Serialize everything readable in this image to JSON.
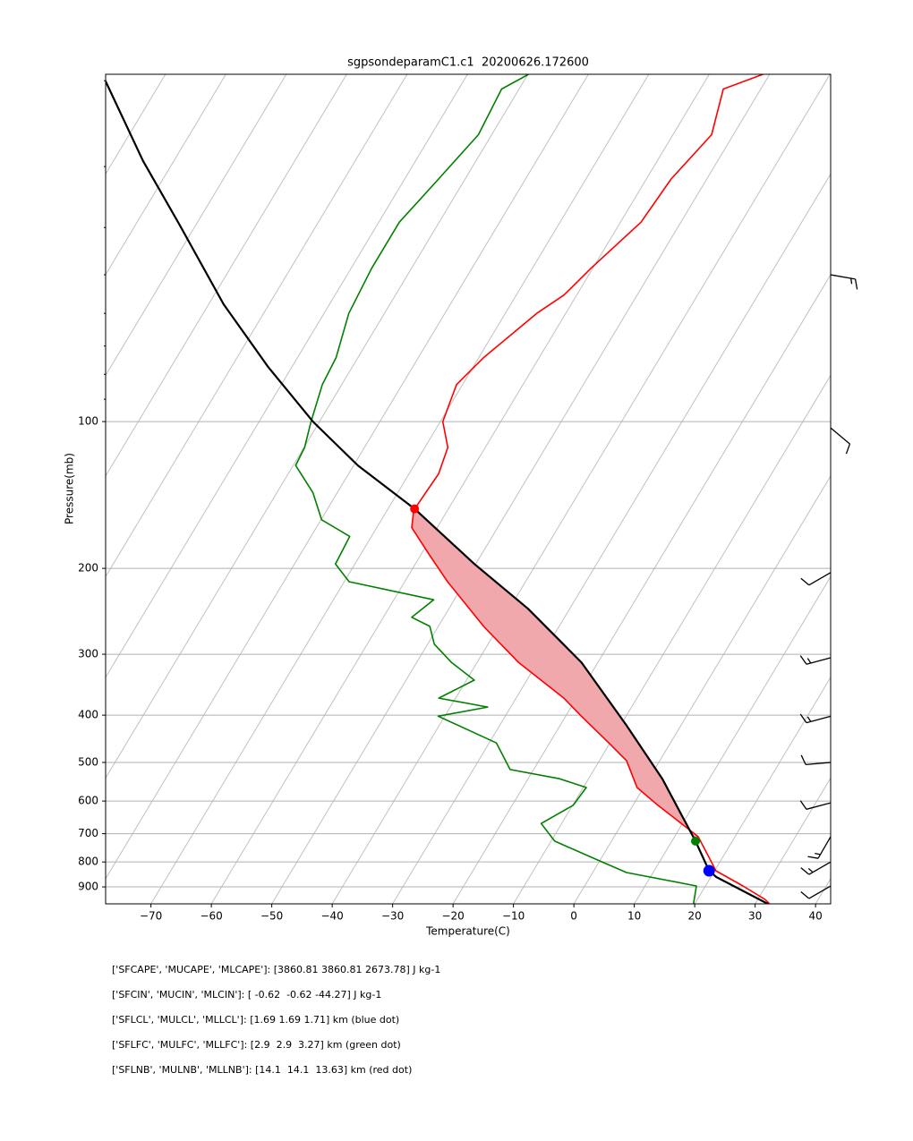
{
  "chart_data": {
    "type": "skewt",
    "title": "sgpsondeparamC1.c1  20200626.172600",
    "xlabel": "Temperature(C)",
    "ylabel": "Pressure(mb)",
    "xlim": [
      -77.5,
      42.5
    ],
    "ylim": [
      975,
      19.4
    ],
    "log_y": true,
    "grid": true,
    "xticks": [
      {
        "value": -70,
        "label": "−70"
      },
      {
        "value": -60,
        "label": "−60"
      },
      {
        "value": -50,
        "label": "−50"
      },
      {
        "value": -40,
        "label": "−40"
      },
      {
        "value": -30,
        "label": "−30"
      },
      {
        "value": -20,
        "label": "−20"
      },
      {
        "value": -10,
        "label": "−10"
      },
      0,
      10,
      20,
      30,
      40
    ],
    "yticks": [
      100,
      200,
      300,
      400,
      500,
      600,
      700,
      800,
      900
    ],
    "yminorticks": [
      20,
      30,
      40,
      50,
      60,
      70,
      80,
      90
    ],
    "isotherms": [
      -160,
      -150,
      -140,
      -130,
      -120,
      -110,
      -100,
      -90,
      -80,
      -70,
      -60,
      -50,
      -40,
      -30,
      -20,
      -10,
      0,
      10,
      20,
      30,
      40
    ],
    "isotherm_color": "#c0c0c0",
    "series": [
      {
        "color": "#ff0000",
        "pressure": [
          975,
          955,
          896,
          834,
          800,
          710,
          612,
          563,
          496,
          456,
          402,
          369,
          312,
          263,
          213,
          188,
          165,
          152,
          128,
          113,
          100,
          84,
          74,
          60,
          55,
          48.5,
          39,
          31.8,
          25.8,
          20.8,
          19.4
        ],
        "temperature": [
          32.4,
          31.2,
          26.2,
          20.2,
          18.6,
          13.9,
          4.1,
          -1.1,
          -5.5,
          -10.2,
          -17.4,
          -22.1,
          -33.1,
          -42.5,
          -52.9,
          -58.5,
          -64.2,
          -65.6,
          -65.1,
          -66.2,
          -69.6,
          -71,
          -69.2,
          -64.8,
          -62.1,
          -60.3,
          -56.6,
          -55.9,
          -53.6,
          -56.2,
          -51.1
        ]
      },
      {
        "color": "#008000",
        "pressure": [
          975,
          896,
          841,
          789,
          725,
          667,
          612,
          563,
          540,
          517,
          456,
          402,
          385,
          369,
          339,
          312,
          286,
          263,
          252,
          232,
          213,
          196,
          172,
          159,
          140,
          123,
          113,
          100,
          84,
          74,
          60,
          48.5,
          39,
          31.8,
          25.8,
          20.8,
          19.4
        ],
        "temperature": [
          19.8,
          18.5,
          5.6,
          -0.9,
          -9.4,
          -13.4,
          -9.9,
          -9.5,
          -14.8,
          -23.9,
          -28.8,
          -41.1,
          -33.8,
          -42.8,
          -38.7,
          -44.2,
          -48.9,
          -51.4,
          -55.3,
          -53.4,
          -69.2,
          -73.2,
          -73.6,
          -79.9,
          -84,
          -89.6,
          -89.9,
          -91.4,
          -93.2,
          -93.6,
          -95.9,
          -96.6,
          -96.6,
          -94.4,
          -92.2,
          -92.9,
          -89.9
        ]
      },
      {
        "color": "#000000",
        "pressure": [
          975,
          859,
          834,
          725,
          540,
          419,
          312,
          242,
          196,
          151,
          123,
          100,
          77.3,
          57.5,
          39.3,
          29.2,
          20.0
        ],
        "temperature": [
          32.1,
          20.9,
          19.1,
          13.9,
          2.2,
          -9.1,
          -22.7,
          -36.9,
          -50.2,
          -65.6,
          -79.3,
          -91.1,
          -103.9,
          -117.5,
          -132.9,
          -145.1,
          -159.3
        ]
      }
    ],
    "cape_fill_color": "#f0a8ac",
    "markers": [
      {
        "color": "#0000ff",
        "pressure": 834,
        "temperature": 19.1
      },
      {
        "color": "#008000",
        "pressure": 725,
        "temperature": 13.9
      },
      {
        "color": "#ff0000",
        "pressure": 151,
        "temperature": -65.6
      }
    ],
    "wind_barbs": {
      "pressure": [
        50,
        103,
        204,
        305,
        402,
        500,
        605,
        710,
        800,
        896
      ],
      "speed": [
        15,
        10,
        10,
        15,
        15,
        10,
        10,
        15,
        15,
        10
      ],
      "direction": [
        100,
        130,
        240,
        255,
        255,
        265,
        255,
        210,
        240,
        240
      ]
    },
    "stats_lines": [
      "['SFCAPE', 'MUCAPE', 'MLCAPE']: [3860.81 3860.81 2673.78] J kg-1",
      "['SFCIN', 'MUCIN', 'MLCIN']: [ -0.62  -0.62 -44.27] J kg-1",
      "['SFLCL', 'MULCL', 'MLLCL']: [1.69 1.69 1.71] km (blue dot)",
      "['SFLFC', 'MULFC', 'MLLFC']: [2.9  2.9  3.27] km (green dot)",
      "['SFLNB', 'MULNB', 'MLLNB']: [14.1  14.1  13.63] km (red dot)"
    ]
  }
}
